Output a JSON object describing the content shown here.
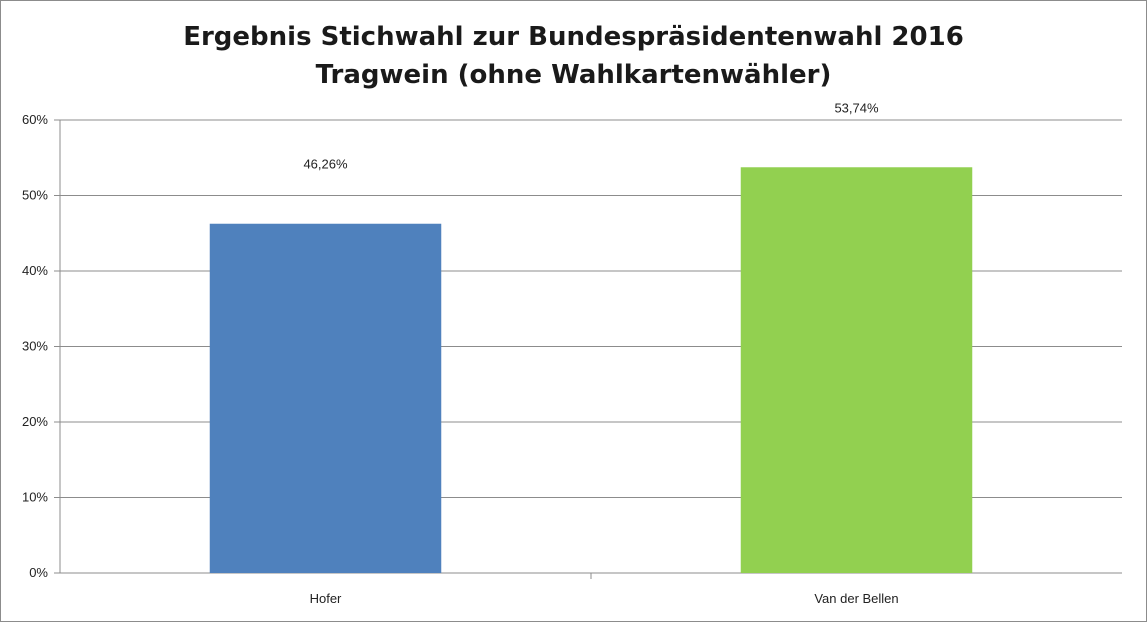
{
  "chart_data": {
    "type": "bar",
    "title_line1": "Ergebnis  Stichwahl zur Bundespräsidentenwahl 2016",
    "title_line2": "Tragwein (ohne Wahlkartenwähler)",
    "categories": [
      "Hofer",
      "Van der Bellen"
    ],
    "values": [
      46.26,
      53.74
    ],
    "data_labels": [
      "46,26%",
      "53,74%"
    ],
    "colors": [
      "#4f81bd",
      "#92d050"
    ],
    "ylim": [
      0,
      60
    ],
    "yticks": [
      0,
      10,
      20,
      30,
      40,
      50,
      60
    ],
    "ytick_labels": [
      "0%",
      "10%",
      "20%",
      "30%",
      "40%",
      "50%",
      "60%"
    ],
    "xlabel": "",
    "ylabel": "",
    "grid": true,
    "legend": "none"
  }
}
